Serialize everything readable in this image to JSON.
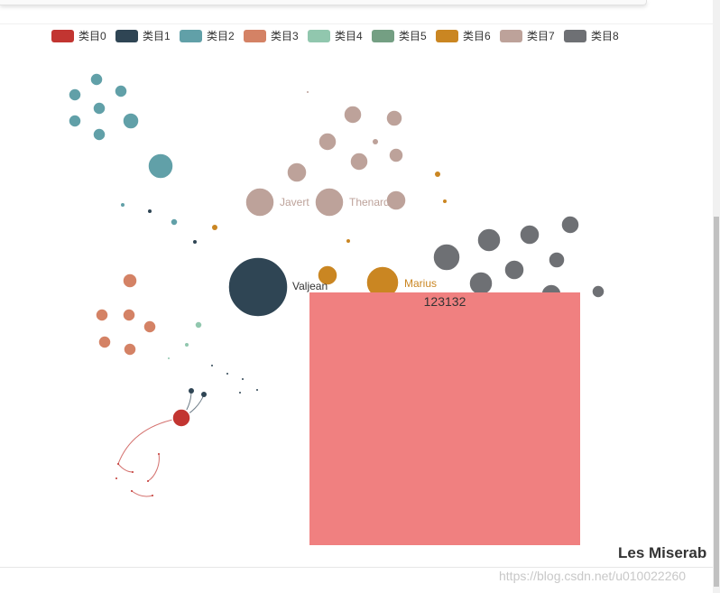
{
  "chart_data": {
    "type": "graph",
    "title": "Les Miserab",
    "categories": [
      {
        "name": "类目0",
        "color": "#c23531"
      },
      {
        "name": "类目1",
        "color": "#2f4554"
      },
      {
        "name": "类目2",
        "color": "#61a0a8"
      },
      {
        "name": "类目3",
        "color": "#d48265"
      },
      {
        "name": "类目4",
        "color": "#91c7ae"
      },
      {
        "name": "类目5",
        "color": "#749f83"
      },
      {
        "name": "类目6",
        "color": "#ca8622"
      },
      {
        "name": "类目7",
        "color": "#bda29a"
      },
      {
        "name": "类目8",
        "color": "#6e7074"
      }
    ],
    "labeled_nodes": [
      {
        "name": "Valjean",
        "category": 1
      },
      {
        "name": "Javert",
        "category": 7
      },
      {
        "name": "Thenardier",
        "category": 7
      },
      {
        "name": "Marius",
        "category": 6
      }
    ]
  },
  "overlay": {
    "text": "123132",
    "color": "#f08080"
  },
  "watermark": "https://blog.csdn.net/u010022260"
}
